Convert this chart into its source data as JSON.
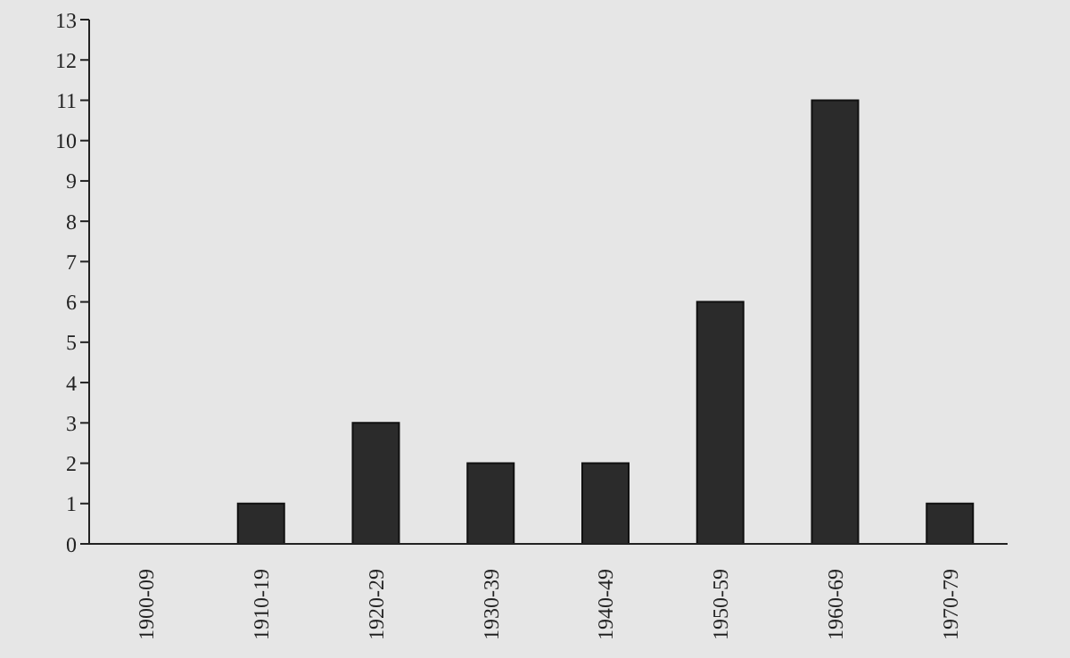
{
  "chart_data": {
    "type": "bar",
    "categories": [
      "1900-09",
      "1910-19",
      "1920-29",
      "1930-39",
      "1940-49",
      "1950-59",
      "1960-69",
      "1970-79"
    ],
    "values": [
      0,
      1,
      3,
      2,
      2,
      6,
      11,
      1
    ],
    "color": "#2b2b2b",
    "ylim": [
      0,
      13
    ],
    "yticks": [
      0,
      1,
      2,
      3,
      4,
      5,
      6,
      7,
      8,
      9,
      10,
      11,
      12,
      13
    ],
    "grid": false
  }
}
